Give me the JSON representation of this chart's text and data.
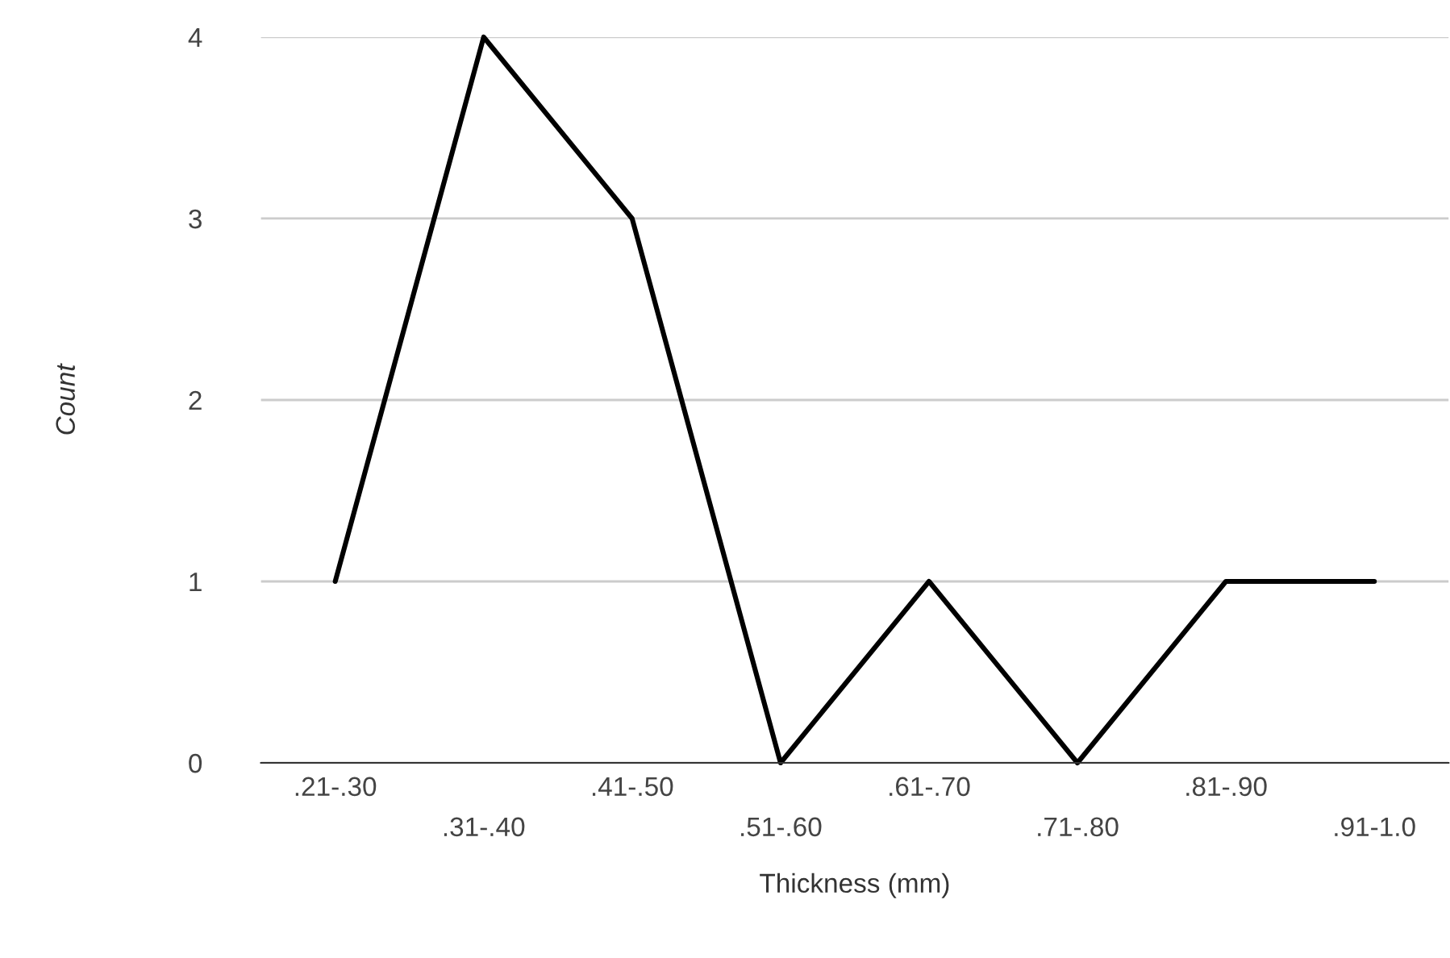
{
  "chart_data": {
    "type": "line",
    "xlabel": "Thickness (mm)",
    "ylabel": "Count",
    "categories": [
      ".21-.30",
      ".31-.40",
      ".41-.50",
      ".51-.60",
      ".61-.70",
      ".71-.80",
      ".81-.90",
      ".91-1.0"
    ],
    "series": [
      {
        "color": "#000000",
        "values": [
          1,
          4,
          3,
          0,
          1,
          0,
          1,
          1
        ]
      }
    ],
    "ylim": [
      0,
      4
    ],
    "yticks": [
      0,
      1,
      2,
      3,
      4
    ],
    "grid": "y",
    "legend": false,
    "marker": "none",
    "line_style": "solid"
  }
}
